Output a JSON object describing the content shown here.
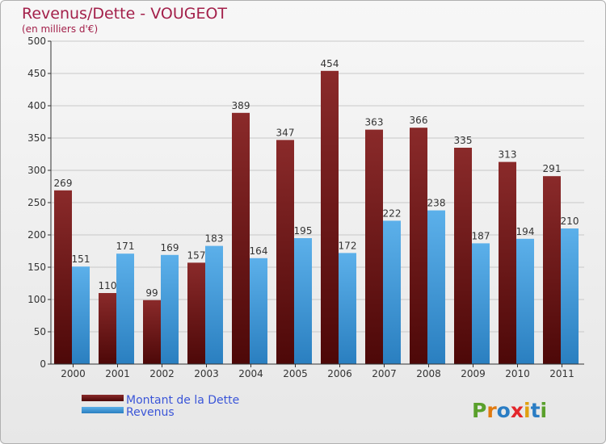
{
  "chart_data": {
    "type": "bar",
    "title": "Revenus/Dette - VOUGEOT",
    "subtitle": "(en milliers d'€)",
    "categories": [
      "2000",
      "2001",
      "2002",
      "2003",
      "2004",
      "2005",
      "2006",
      "2007",
      "2008",
      "2009",
      "2010",
      "2011"
    ],
    "series": [
      {
        "name": "Montant de la Dette",
        "values": [
          269,
          110,
          99,
          157,
          389,
          347,
          454,
          363,
          366,
          335,
          313,
          291
        ]
      },
      {
        "name": "Revenus",
        "values": [
          151,
          171,
          169,
          183,
          164,
          195,
          172,
          222,
          238,
          187,
          194,
          210
        ]
      }
    ],
    "ylim": [
      0,
      500
    ],
    "yticks": [
      0,
      50,
      100,
      150,
      200,
      250,
      300,
      350,
      400,
      450,
      500
    ],
    "grid": true,
    "legend": "bottom-left",
    "colors": {
      "dette": "#7a1818",
      "revenus": "#4aa3e0"
    }
  },
  "logo": {
    "text": "Proxiti",
    "letters": [
      "P",
      "r",
      "o",
      "x",
      "i",
      "t",
      "i"
    ],
    "colors": [
      "#5aa02c",
      "#e07a10",
      "#2a7dc4",
      "#e3262b",
      "#e0a010",
      "#2a7dc4",
      "#5aa02c"
    ]
  }
}
